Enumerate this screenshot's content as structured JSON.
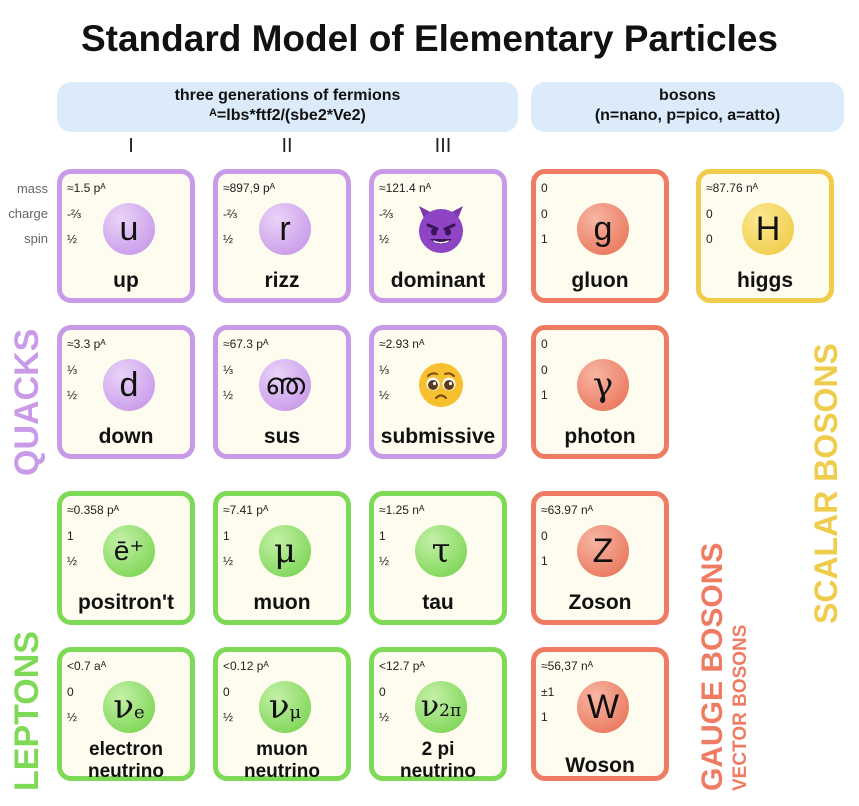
{
  "title": "Standard Model of Elementary Particles",
  "fermions_header": {
    "line1": "three generations of fermions",
    "line2": "ᴬ=lbs*ftf2/(sbe2*Ve2)"
  },
  "bosons_header": {
    "line1": "bosons",
    "line2": "(n=nano, p=pico, a=atto)"
  },
  "generations": [
    "I",
    "II",
    "III"
  ],
  "row_labels": {
    "mass": "mass",
    "charge": "charge",
    "spin": "spin"
  },
  "side_labels": {
    "quarks": "QUACKS",
    "leptons": "LEPTONS",
    "gauge": "GAUGE BOSONS",
    "vector": "VECTOR BOSONS",
    "scalar": "SCALAR BOSONS"
  },
  "particles": {
    "up": {
      "mass": "≈1.5 pᴬ",
      "charge": "-⅔",
      "spin": "½",
      "symbol": "u",
      "name": "up"
    },
    "rizz": {
      "mass": "≈897,9 pᴬ",
      "charge": "-⅔",
      "spin": "½",
      "symbol": "r",
      "name": "rizz"
    },
    "dominant": {
      "mass": "≈121.4 nᴬ",
      "charge": "-⅔",
      "spin": "½",
      "symbol": "devil-emoji",
      "name": "dominant"
    },
    "gluon": {
      "mass": "0",
      "charge": "0",
      "spin": "1",
      "symbol": "g",
      "name": "gluon"
    },
    "higgs": {
      "mass": "≈87.76 nᴬ",
      "charge": "0",
      "spin": "0",
      "symbol": "H",
      "name": "higgs"
    },
    "down": {
      "mass": "≈3.3 pᴬ",
      "charge": "⅓",
      "spin": "½",
      "symbol": "d",
      "name": "down"
    },
    "sus": {
      "mass": "≈67.3 pᴬ",
      "charge": "⅓",
      "spin": "½",
      "symbol": "ഞ",
      "name": "sus"
    },
    "submissive": {
      "mass": "≈2.93 nᴬ",
      "charge": "⅓",
      "spin": "½",
      "symbol": "pleading-face-emoji",
      "name": "submissive"
    },
    "photon": {
      "mass": "0",
      "charge": "0",
      "spin": "1",
      "symbol": "γ",
      "name": "photon"
    },
    "positront": {
      "mass": "≈0.358 pᴬ",
      "charge": "1",
      "spin": "½",
      "symbol": "ē⁺",
      "name": "positron't"
    },
    "muon": {
      "mass": "≈7.41 pᴬ",
      "charge": "1",
      "spin": "½",
      "symbol": "μ",
      "name": "muon"
    },
    "tau": {
      "mass": "≈1.25 nᴬ",
      "charge": "1",
      "spin": "½",
      "symbol": "τ",
      "name": "tau"
    },
    "zoson": {
      "mass": "≈63.97 nᴬ",
      "charge": "0",
      "spin": "1",
      "symbol": "Z",
      "name": "Zoson"
    },
    "e_neutrino": {
      "mass": "<0.7 aᴬ",
      "charge": "0",
      "spin": "½",
      "symbol": "ν",
      "sub": "e",
      "name1": "electron",
      "name2": "neutrino"
    },
    "mu_neutrino": {
      "mass": "<0.12 pᴬ",
      "charge": "0",
      "spin": "½",
      "symbol": "ν",
      "sub": "μ",
      "name1": "muon",
      "name2": "neutrino"
    },
    "pi_neutrino": {
      "mass": "<12.7 pᴬ",
      "charge": "0",
      "spin": "½",
      "symbol": "ν",
      "sub": "2π",
      "name1": "2 pi",
      "name2": "neutrino"
    },
    "woson": {
      "mass": "≈56,37 nᴬ",
      "charge": "±1",
      "spin": "1",
      "symbol": "W",
      "name": "Woson"
    }
  },
  "colors": {
    "quark": "#c89ae8",
    "lepton": "#7ed957",
    "gauge": "#ef7b63",
    "scalar": "#efcc4b",
    "header_bg": "#dcebfa"
  }
}
